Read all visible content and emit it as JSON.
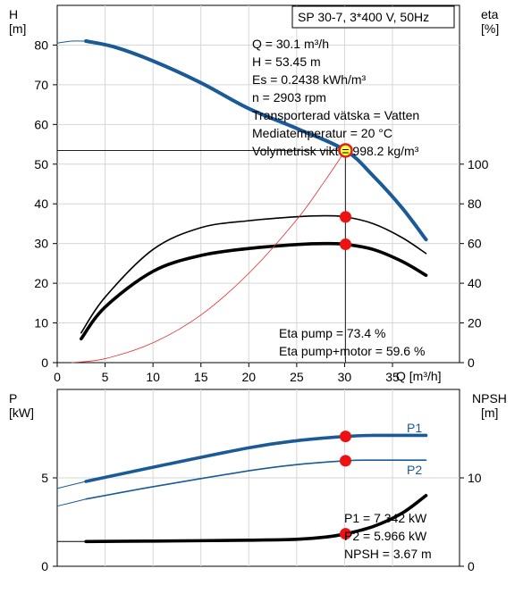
{
  "top_chart": {
    "title": "SP 30-7, 3*400 V, 50Hz",
    "y_left_label_line1": "H",
    "y_left_label_line2": "[m]",
    "y_right_label_line1": "eta",
    "y_right_label_line2": "[%]",
    "x_label": "Q [m³/h]",
    "info_lines": [
      "Q = 30.1 m³/h",
      "H = 53.45 m",
      "Es = 0.2438 kWh/m³",
      "n = 2903 rpm",
      "Transporterad vätska = Vatten",
      "Mediatemperatur = 20 °C",
      "Volymetrisk vikt = 998.2 kg/m³"
    ],
    "eta_lines": [
      "Eta pump = 73.4 %",
      "Eta pump+motor = 59.6 %"
    ]
  },
  "bottom_chart": {
    "y_left_label_line1": "P",
    "y_left_label_line2": "[kW]",
    "y_right_label_line1": "NPSH",
    "y_right_label_line2": "[m]",
    "info_lines": [
      "P1 = 7.342 kW",
      "P2 = 5.966 kW",
      "NPSH = 3.67 m"
    ]
  },
  "chart_data": [
    {
      "type": "line",
      "title": "SP 30-7, 3*400 V, 50Hz",
      "xlabel": "Q [m³/h]",
      "ylabel": "H [m]",
      "y2label": "eta [%]",
      "xlim": [
        0,
        42
      ],
      "ylim": [
        0,
        90
      ],
      "y2lim": [
        0,
        180
      ],
      "x_ticks": [
        0,
        5,
        10,
        15,
        20,
        25,
        30,
        35
      ],
      "y_ticks": [
        0,
        10,
        20,
        30,
        40,
        50,
        60,
        70,
        80
      ],
      "y2_ticks": [
        0,
        20,
        40,
        60,
        80,
        100
      ],
      "grid": true,
      "series": [
        {
          "axis": "left",
          "color": "#1a5a96",
          "x": [
            3,
            6,
            10,
            15,
            20,
            25,
            30.1,
            33,
            36,
            38.5
          ],
          "values": [
            81,
            79.5,
            76,
            70.5,
            64,
            59,
            53.45,
            47,
            39,
            31
          ]
        },
        {
          "axis": "left",
          "color": "#1a5a96",
          "x": [
            0,
            1.5,
            3
          ],
          "values": [
            80.5,
            81,
            81
          ]
        },
        {
          "axis": "right",
          "color": "#000000",
          "x": [
            2.5,
            5,
            10,
            15,
            20,
            25,
            28,
            30.1,
            33,
            36,
            38.5
          ],
          "values": [
            15,
            33,
            57,
            68,
            71.5,
            73.5,
            74,
            73.4,
            70,
            63,
            55
          ]
        },
        {
          "axis": "right",
          "color": "#000000",
          "x": [
            2.5,
            5,
            10,
            15,
            20,
            25,
            28,
            30.1,
            33,
            36,
            38.5
          ],
          "values": [
            12,
            28,
            46,
            54,
            57.5,
            59.5,
            60,
            59.6,
            57,
            51,
            44
          ]
        },
        {
          "axis": "right",
          "color": "#e03030",
          "x": [
            1.5,
            5,
            10,
            15,
            20,
            25,
            28,
            30.1
          ],
          "values": [
            0,
            2,
            10,
            24,
            45,
            72,
            92,
            107
          ]
        }
      ],
      "operating_point": {
        "x": 30.1,
        "y": 53.45,
        "eta_pump": 73.4,
        "eta_pump_motor": 59.6
      }
    },
    {
      "type": "line",
      "ylabel": "P [kW]",
      "y2label": "NPSH [m]",
      "xlim": [
        0,
        42
      ],
      "ylim": [
        0,
        10
      ],
      "y2lim": [
        0,
        20
      ],
      "y_ticks": [
        0,
        5
      ],
      "y2_ticks": [
        0,
        10
      ],
      "grid": true,
      "series": [
        {
          "name": "P1",
          "axis": "left",
          "color": "#1a5a96",
          "x": [
            0,
            3,
            10,
            20,
            25,
            30.1,
            33,
            38.5
          ],
          "values": [
            4.4,
            4.8,
            5.6,
            6.7,
            7.1,
            7.342,
            7.4,
            7.4
          ]
        },
        {
          "name": "P2",
          "axis": "left",
          "color": "#1a5a96",
          "x": [
            0,
            3,
            10,
            20,
            25,
            30.1,
            33,
            38.5
          ],
          "values": [
            3.4,
            3.8,
            4.5,
            5.4,
            5.75,
            5.966,
            6.0,
            6.0
          ]
        },
        {
          "axis": "right",
          "color": "#000000",
          "x": [
            0,
            3,
            10,
            20,
            25,
            28,
            30.1,
            33,
            36,
            38.5
          ],
          "values": [
            2.8,
            2.8,
            2.85,
            2.95,
            3.05,
            3.3,
            3.67,
            4.5,
            6.0,
            8.0
          ]
        }
      ],
      "operating_point": {
        "x": 30.1,
        "P1": 7.342,
        "P2": 5.966,
        "NPSH": 3.67
      }
    }
  ]
}
